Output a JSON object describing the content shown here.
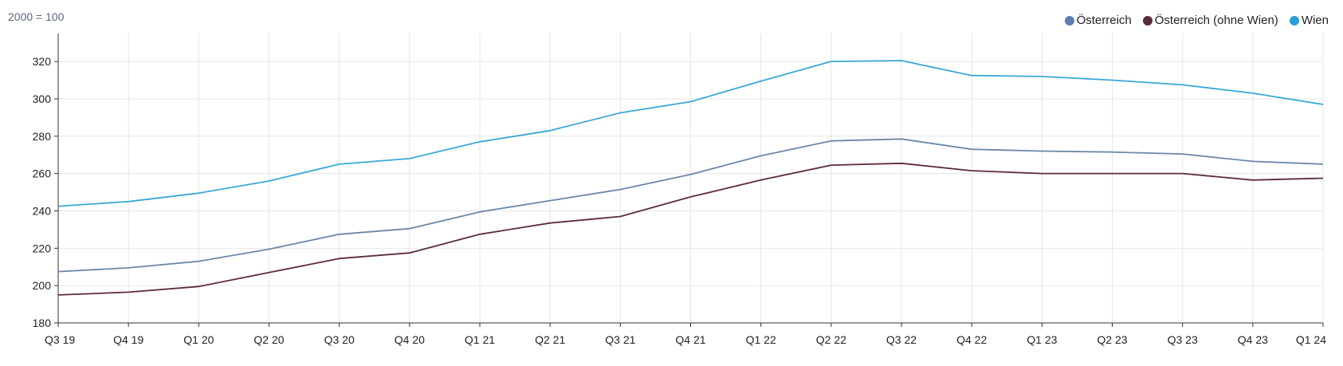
{
  "chart_data": {
    "type": "line",
    "unit_note": "2000 = 100",
    "categories": [
      "Q3 19",
      "Q4 19",
      "Q1 20",
      "Q2 20",
      "Q3 20",
      "Q4 20",
      "Q1 21",
      "Q2 21",
      "Q3 21",
      "Q4 21",
      "Q1 22",
      "Q2 22",
      "Q3 22",
      "Q4 22",
      "Q1 23",
      "Q2 23",
      "Q3 23",
      "Q4 23",
      "Q1 24"
    ],
    "ylim": [
      180,
      335
    ],
    "yticks": [
      180,
      200,
      220,
      240,
      260,
      280,
      300,
      320
    ],
    "grid": true,
    "legend_position": "top-right",
    "series": [
      {
        "name": "Österreich",
        "color": "#6a88a8",
        "values": [
          207.5,
          209.5,
          213,
          219.5,
          227.5,
          230.5,
          239.5,
          245.5,
          251.5,
          259.5,
          269.5,
          277.5,
          278.5,
          273,
          272,
          271.5,
          270.5,
          266.5,
          265
        ]
      },
      {
        "name": "Österreich (ohne Wien)",
        "color": "#5c2b3a",
        "values": [
          195,
          196.5,
          199.5,
          207,
          214.5,
          217.5,
          227.5,
          233.5,
          237,
          247.5,
          256.5,
          264.5,
          265.5,
          261.5,
          260,
          260,
          260,
          256.5,
          257.5
        ]
      },
      {
        "name": "Wien",
        "color": "#3aa8d8",
        "values": [
          242.5,
          245,
          249.5,
          256,
          265,
          268,
          277,
          283,
          292.5,
          298.5,
          309.5,
          320,
          320.5,
          312.5,
          312,
          310,
          307.5,
          303,
          297
        ]
      }
    ]
  },
  "legend_dot_colors": [
    "#5b7fb0",
    "#5c2b3a",
    "#2aa0d8"
  ]
}
